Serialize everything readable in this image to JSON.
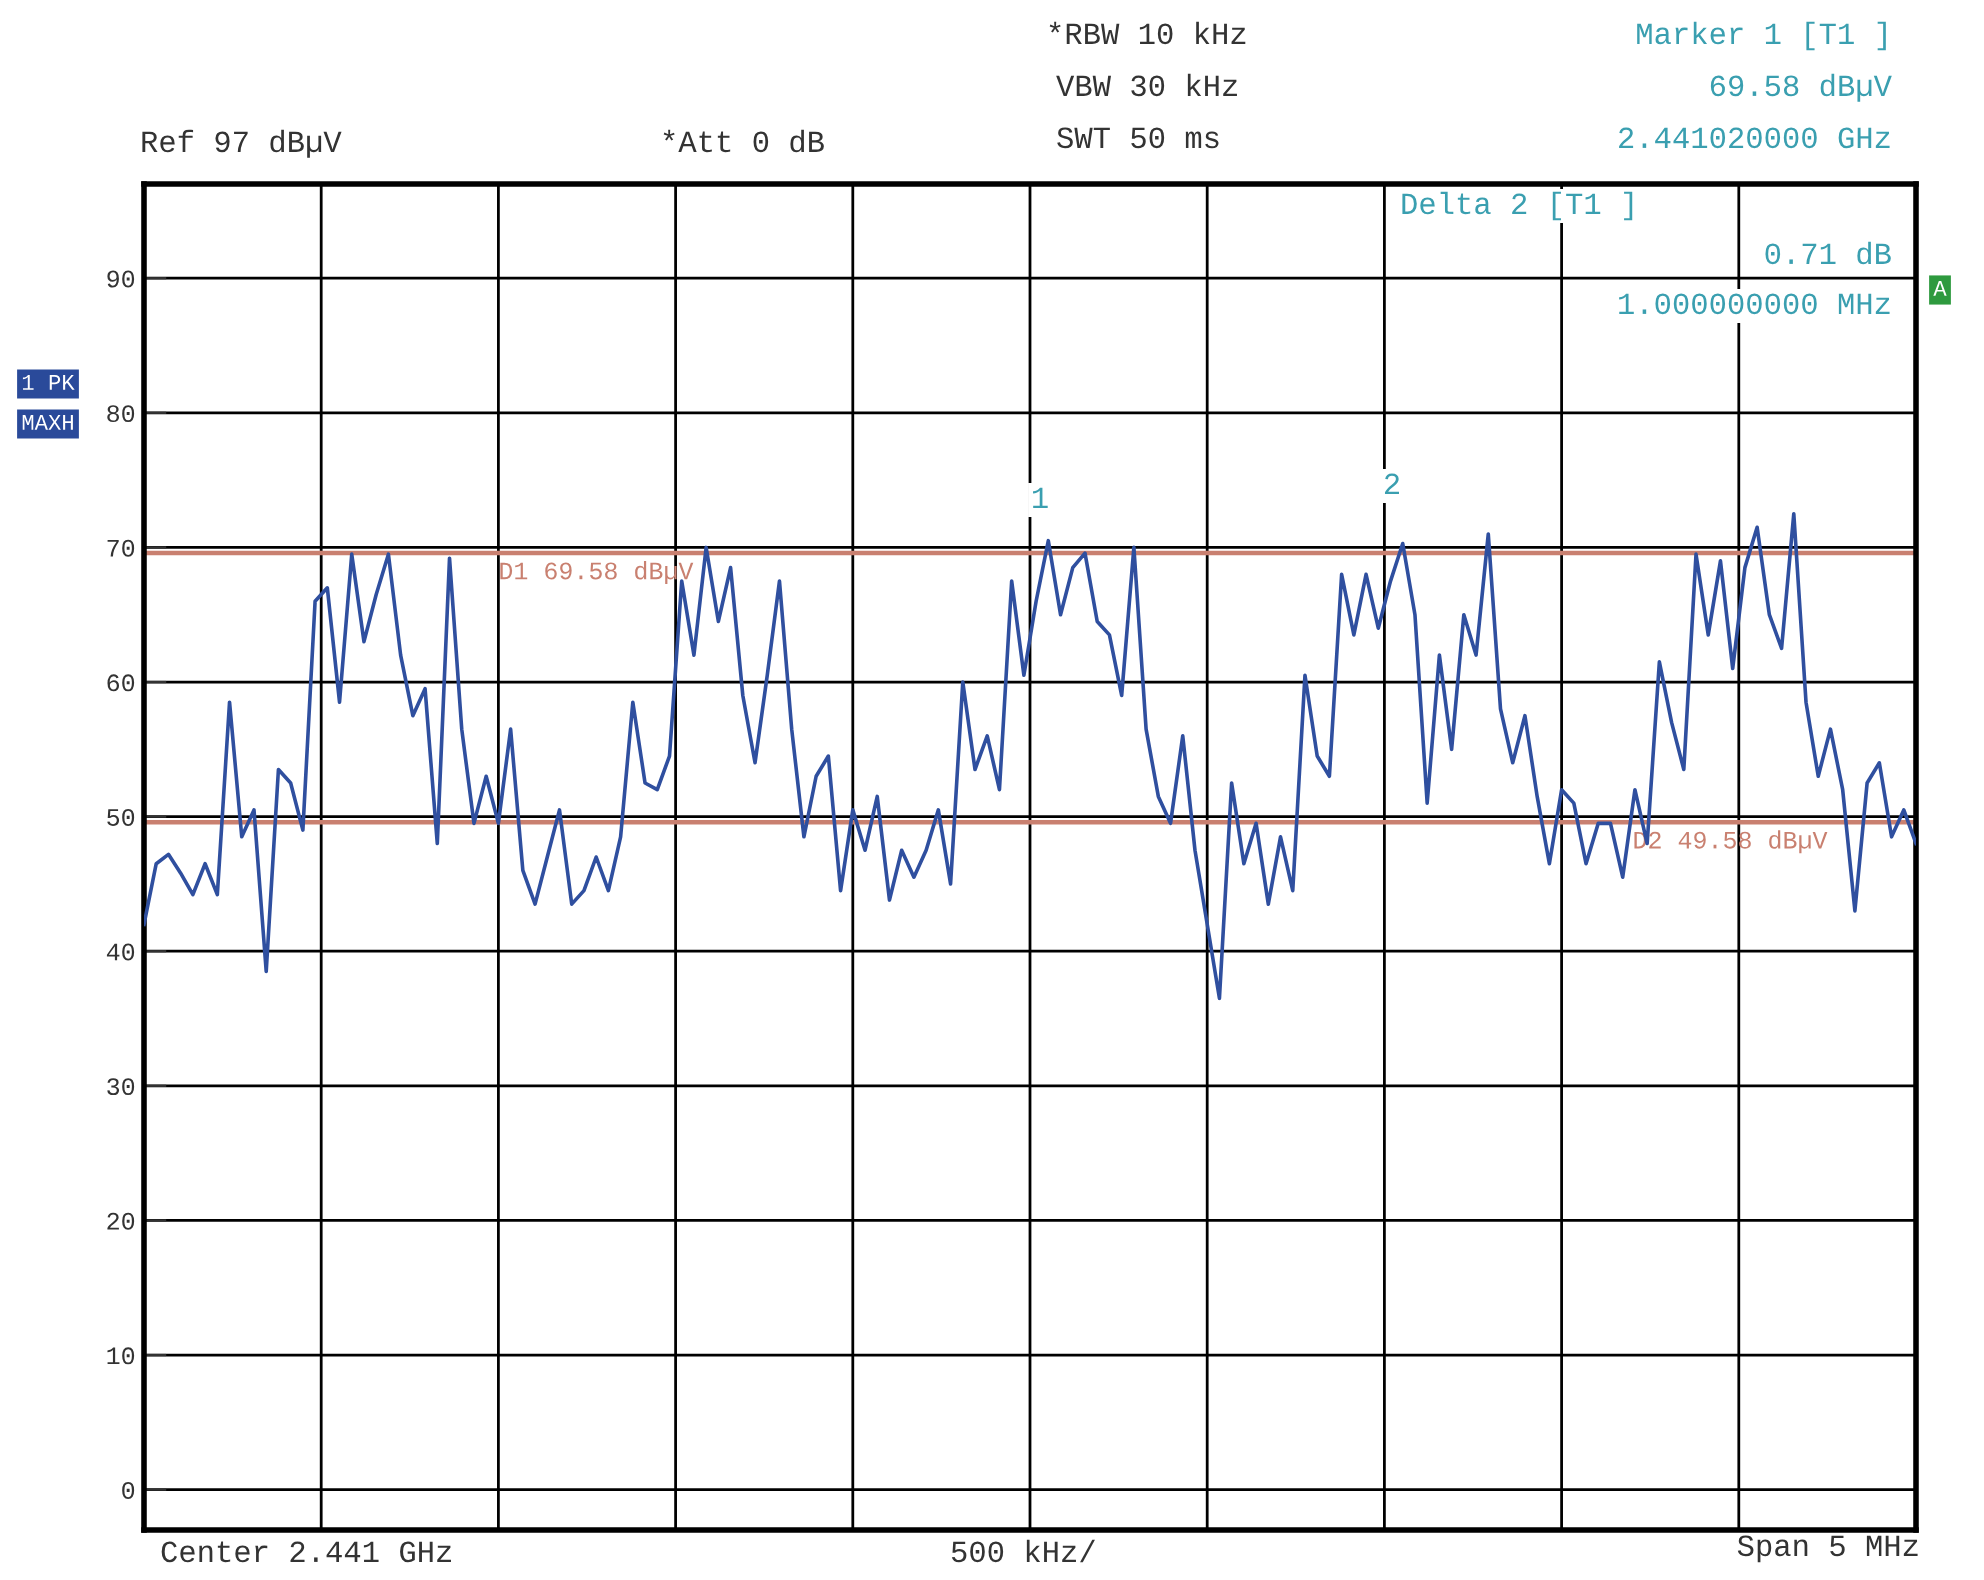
{
  "chart_data": {
    "type": "line",
    "categories": [
      null,
      null,
      null,
      null,
      null,
      null,
      null,
      null,
      null,
      null,
      null,
      null,
      null,
      null,
      null,
      null,
      null,
      null,
      null,
      null,
      null,
      null,
      null,
      null,
      null,
      null,
      null,
      null,
      null,
      null,
      null,
      null,
      null,
      null,
      null,
      null,
      null,
      null,
      null,
      null,
      null,
      null,
      null,
      null,
      null,
      null,
      null,
      null,
      null,
      null,
      null,
      null,
      null,
      null,
      null,
      null,
      null,
      null,
      null,
      null,
      null,
      null,
      null,
      null,
      null,
      null,
      null,
      null,
      null,
      null,
      null,
      null,
      null,
      null,
      null,
      null,
      null,
      null,
      null,
      null,
      null,
      null,
      null,
      null,
      null,
      null,
      null,
      null,
      null,
      null,
      null,
      null,
      null,
      null,
      null,
      null,
      null,
      null,
      null,
      null,
      null,
      null,
      null,
      null,
      null,
      null,
      null,
      null,
      null,
      null,
      null,
      null,
      null,
      null,
      null,
      null,
      null,
      null,
      null,
      null,
      null,
      null,
      null,
      null,
      null,
      null,
      null,
      null,
      null,
      null,
      null,
      null,
      null,
      null,
      null,
      null,
      null,
      null,
      null,
      null,
      null,
      null,
      null,
      null,
      null,
      null
    ],
    "series": [
      {
        "color": "#2f4f9f",
        "values": [
          42,
          46.5,
          47.2,
          45.8,
          44.2,
          46.5,
          44.2,
          58.5,
          48.5,
          50.5,
          38.5,
          53.5,
          52.5,
          49,
          66,
          67,
          58.5,
          69.5,
          63,
          66.5,
          69.5,
          62,
          57.5,
          59.5,
          48,
          69.2,
          56.5,
          49.5,
          53,
          49.5,
          56.5,
          46,
          43.5,
          47,
          50.5,
          43.5,
          44.5,
          47,
          44.5,
          48.5,
          58.5,
          52.5,
          52,
          54.5,
          67.5,
          62,
          70,
          64.5,
          68.5,
          59,
          54,
          60.5,
          67.5,
          56.5,
          48.5,
          53,
          54.5,
          44.5,
          50.5,
          47.5,
          51.5,
          43.8,
          47.5,
          45.5,
          47.5,
          50.5,
          45,
          60,
          53.5,
          56,
          52,
          67.5,
          60.5,
          66,
          70.5,
          65,
          68.5,
          69.58,
          64.5,
          63.5,
          59,
          70,
          56.5,
          51.5,
          49.5,
          56,
          47.5,
          42,
          36.5,
          52.5,
          46.5,
          49.5,
          43.5,
          48.5,
          44.5,
          60.5,
          54.5,
          53,
          68,
          63.5,
          68,
          64,
          67.5,
          70.29,
          65,
          51,
          62,
          55,
          65,
          62,
          71,
          58,
          54,
          57.5,
          51.5,
          46.5,
          52,
          51,
          46.5,
          49.5,
          49.5,
          45.5,
          52,
          48,
          61.5,
          57,
          53.5,
          69.5,
          63.5,
          69,
          61,
          68.5,
          71.5,
          65,
          62.5,
          72.5,
          58.5,
          53,
          56.5,
          52,
          43,
          52.5,
          54,
          48.5,
          50.5,
          48
        ]
      }
    ],
    "ylim": [
      -3,
      97
    ],
    "yticks": [
      0,
      10,
      20,
      30,
      40,
      50,
      60,
      70,
      80,
      90
    ],
    "grid": true,
    "ref_lines": [
      {
        "axis": "y",
        "value": 69.58,
        "label": "D1 69.58 dBµV",
        "color": "#c98070"
      },
      {
        "axis": "y",
        "value": 49.58,
        "label": "D2 49.58 dBµV",
        "color": "#c98070"
      }
    ],
    "annotations": [
      "Ref 97 dBµV",
      "*Att 0 dB",
      "*RBW 10 kHz",
      "VBW 30 kHz",
      "SWT 50 ms",
      "Marker 1 [T1 ]",
      "69.58 dBµV",
      "2.441020000 GHz",
      "Delta 2 [T1 ]",
      "0.71 dB",
      "1.000000000 MHz",
      "1 PK",
      "MAXH",
      "A",
      "Center 2.441 GHz",
      "500 kHz/",
      "Span 5 MHz",
      "1",
      "2"
    ]
  }
}
